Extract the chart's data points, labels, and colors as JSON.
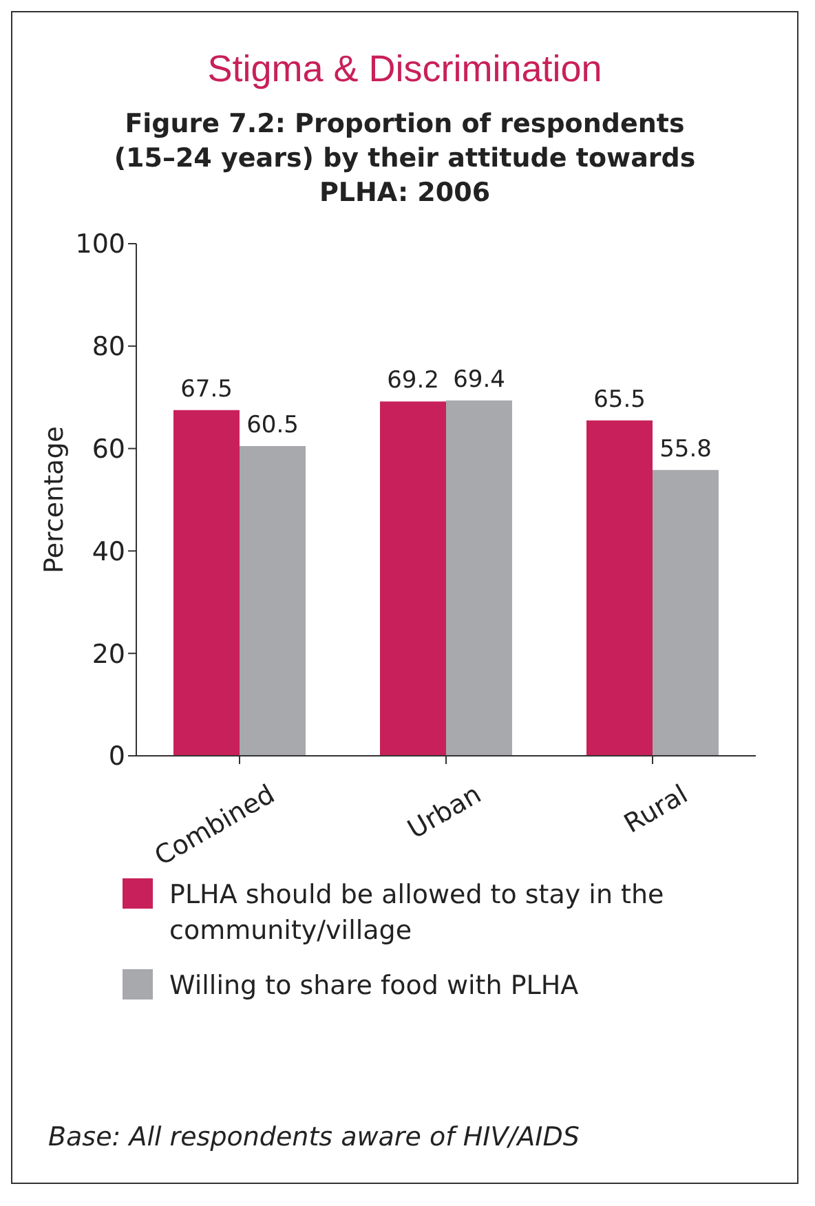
{
  "chart_data": {
    "type": "bar",
    "title": "Stigma & Discrimination",
    "subtitle": "Figure 7.2: Proportion of respondents (15–24 years) by their attitude towards PLHA: 2006",
    "ylabel": "Percentage",
    "categories": [
      "Combined",
      "Urban",
      "Rural"
    ],
    "series": [
      {
        "name": "PLHA should be allowed to stay in the community/village",
        "color": "#c8205a",
        "values": [
          67.5,
          69.2,
          65.5
        ]
      },
      {
        "name": "Willing to share food with PLHA",
        "color": "#a7a9ac",
        "values": [
          60.5,
          69.4,
          55.8
        ]
      }
    ],
    "ylim": [
      0,
      100
    ],
    "yticks": [
      0,
      20,
      40,
      60,
      80,
      100
    ],
    "grid": false,
    "legend": "bottom",
    "data_labels": true,
    "annotations": [
      "Base: All respondents aware of HIV/AIDS"
    ]
  }
}
